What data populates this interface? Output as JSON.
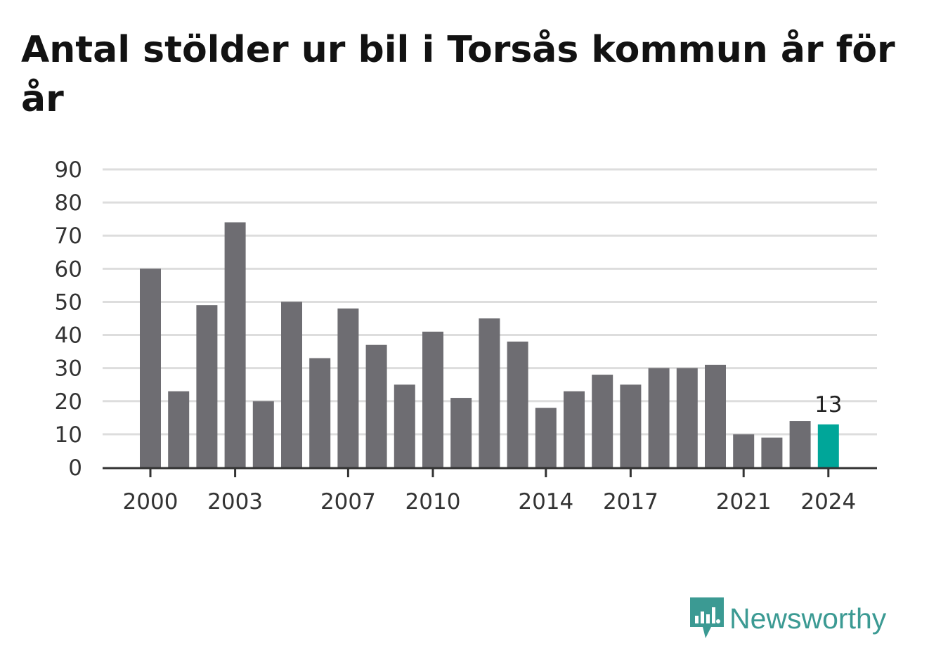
{
  "chart_data": {
    "type": "bar",
    "title": "Antal stölder ur bil i Torsås kommun år för år",
    "xlabel": "",
    "ylabel": "",
    "ylim": [
      0,
      90
    ],
    "yticks": [
      "0",
      "10",
      "20",
      "30",
      "40",
      "50",
      "60",
      "70",
      "80",
      "90"
    ],
    "categories": [
      "2000",
      "2001",
      "2002",
      "2003",
      "2004",
      "2005",
      "2006",
      "2007",
      "2008",
      "2009",
      "2010",
      "2011",
      "2012",
      "2013",
      "2014",
      "2015",
      "2016",
      "2017",
      "2018",
      "2019",
      "2020",
      "2021",
      "2022",
      "2023",
      "2024"
    ],
    "xtick_labels": [
      "2000",
      "2003",
      "2007",
      "2010",
      "2014",
      "2017",
      "2021",
      "2024"
    ],
    "values": [
      60,
      23,
      49,
      74,
      20,
      50,
      33,
      48,
      37,
      25,
      41,
      21,
      45,
      38,
      18,
      23,
      28,
      25,
      30,
      30,
      31,
      10,
      9,
      14,
      13
    ],
    "bar_color": "#6e6d72",
    "highlight_color": "#00a699",
    "highlight_category": "2024",
    "data_label": "13",
    "grid": true
  },
  "brand": {
    "name": "Newsworthy",
    "icon": "newsworthy-logo-icon",
    "color": "#3b9a93"
  }
}
